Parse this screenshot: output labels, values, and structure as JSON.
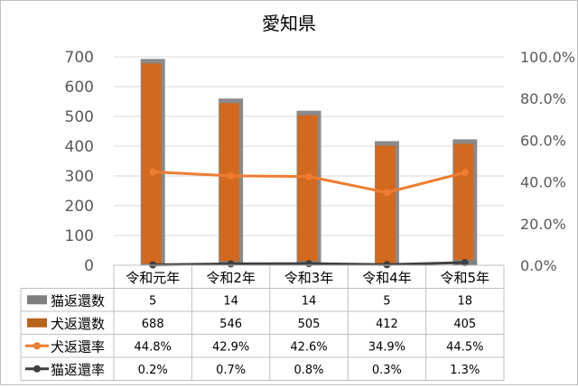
{
  "chart_data": {
    "type": "bar",
    "title": "愛知県",
    "categories": [
      "令和元年",
      "令和2年",
      "令和3年",
      "令和4年",
      "令和5年"
    ],
    "series": [
      {
        "name": "猫返還数",
        "kind": "bar",
        "axis": "left",
        "color": "#7f7f7f",
        "values": [
          5,
          14,
          14,
          5,
          18
        ],
        "labels": [
          "5",
          "14",
          "14",
          "5",
          "18"
        ]
      },
      {
        "name": "犬返還数",
        "kind": "bar",
        "axis": "left",
        "color": "#d2691e",
        "values": [
          688,
          546,
          505,
          412,
          405
        ],
        "labels": [
          "688",
          "546",
          "505",
          "412",
          "405"
        ]
      },
      {
        "name": "犬返還率",
        "kind": "line",
        "axis": "right",
        "color": "#ed7d31",
        "values": [
          44.8,
          42.9,
          42.6,
          34.9,
          44.5
        ],
        "labels": [
          "44.8%",
          "42.9%",
          "42.6%",
          "34.9%",
          "44.5%"
        ]
      },
      {
        "name": "猫返還率",
        "kind": "line",
        "axis": "right",
        "color": "#404040",
        "values": [
          0.2,
          0.7,
          0.8,
          0.3,
          1.3
        ],
        "labels": [
          "0.2%",
          "0.7%",
          "0.8%",
          "0.3%",
          "1.3%"
        ]
      }
    ],
    "y_left": {
      "ylim": [
        0,
        700
      ],
      "ticks": [
        "0",
        "100",
        "200",
        "300",
        "400",
        "500",
        "600",
        "700"
      ]
    },
    "y_right": {
      "ylim": [
        0,
        100
      ],
      "ticks": [
        "0.0%",
        "20.0%",
        "40.0%",
        "60.0%",
        "80.0%",
        "100.0%"
      ]
    },
    "grid": true,
    "legend": "data table"
  }
}
